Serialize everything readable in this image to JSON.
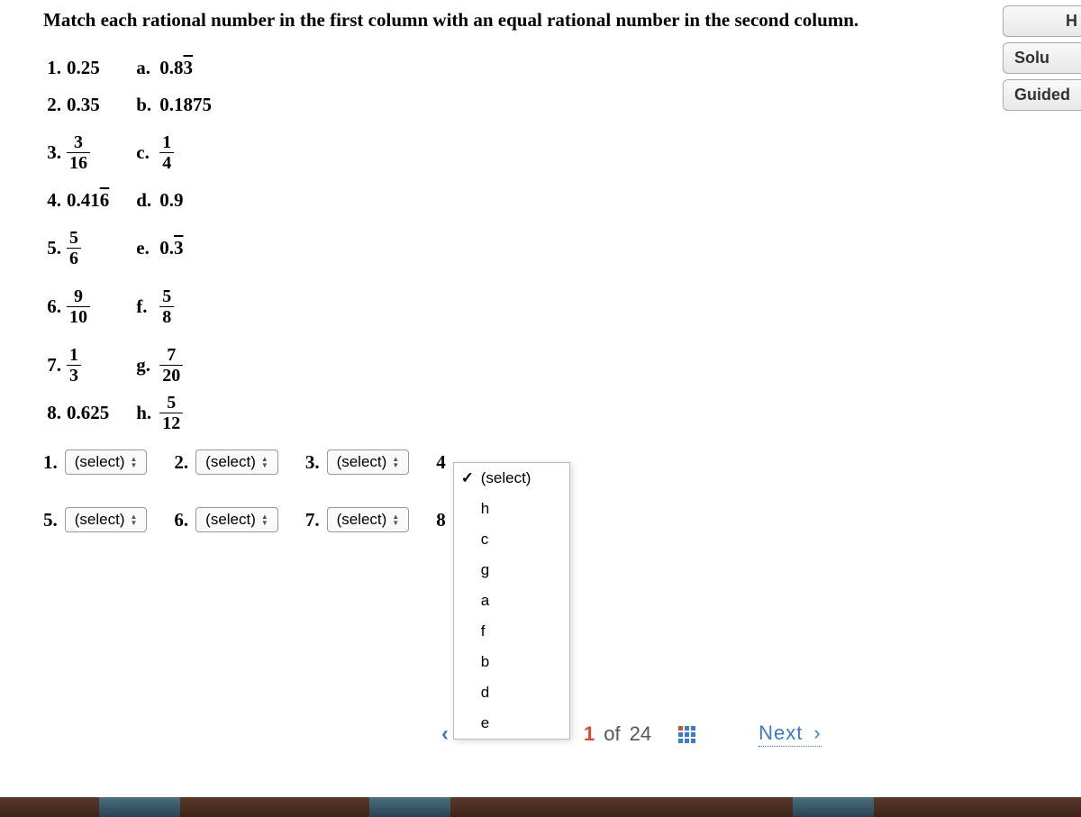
{
  "instruction": "Match each rational number in the first column with an equal rational number in the second column.",
  "left_items": [
    {
      "label": "1.",
      "type": "decimal",
      "value": "0.25"
    },
    {
      "label": "2.",
      "type": "decimal",
      "value": "0.35"
    },
    {
      "label": "3.",
      "type": "fraction",
      "num": "3",
      "den": "16"
    },
    {
      "label": "4.",
      "type": "repeating",
      "prefix": "0.41",
      "rep": "6"
    },
    {
      "label": "5.",
      "type": "fraction",
      "num": "5",
      "den": "6"
    },
    {
      "label": "6.",
      "type": "fraction",
      "num": "9",
      "den": "10"
    },
    {
      "label": "7.",
      "type": "fraction",
      "num": "1",
      "den": "3"
    },
    {
      "label": "8.",
      "type": "decimal",
      "value": "0.625"
    }
  ],
  "right_items": [
    {
      "label": "a.",
      "type": "repeating",
      "prefix": "0.8",
      "rep": "3"
    },
    {
      "label": "b.",
      "type": "decimal",
      "value": "0.1875"
    },
    {
      "label": "c.",
      "type": "fraction",
      "num": "1",
      "den": "4"
    },
    {
      "label": "d.",
      "type": "decimal",
      "value": "0.9"
    },
    {
      "label": "e.",
      "type": "repeating",
      "prefix": "0.",
      "rep": "3"
    },
    {
      "label": "f.",
      "type": "fraction",
      "num": "5",
      "den": "8"
    },
    {
      "label": "g.",
      "type": "fraction",
      "num": "7",
      "den": "20"
    },
    {
      "label": "h.",
      "type": "fraction",
      "num": "5",
      "den": "12"
    }
  ],
  "selects": [
    {
      "label": "1.",
      "text": "(select)"
    },
    {
      "label": "2.",
      "text": "(select)"
    },
    {
      "label": "3.",
      "text": "(select)"
    },
    {
      "label": "4",
      "text": "(select)",
      "open": true
    },
    {
      "label": "5.",
      "text": "(select)"
    },
    {
      "label": "6.",
      "text": "(select)"
    },
    {
      "label": "7.",
      "text": "(select)"
    },
    {
      "label": "8",
      "text": "(select)"
    }
  ],
  "dropdown_options": [
    "(select)",
    "h",
    "c",
    "g",
    "a",
    "f",
    "b",
    "d",
    "e"
  ],
  "dropdown_selected_index": 0,
  "side": {
    "top": "H",
    "solu": "Solu",
    "guided": "Guided"
  },
  "pager": {
    "current": "1",
    "of_word": "of",
    "total": "24",
    "next": "Next"
  },
  "colors": {
    "accent_blue": "#3b7bc9",
    "accent_orange": "#d94b2b"
  }
}
